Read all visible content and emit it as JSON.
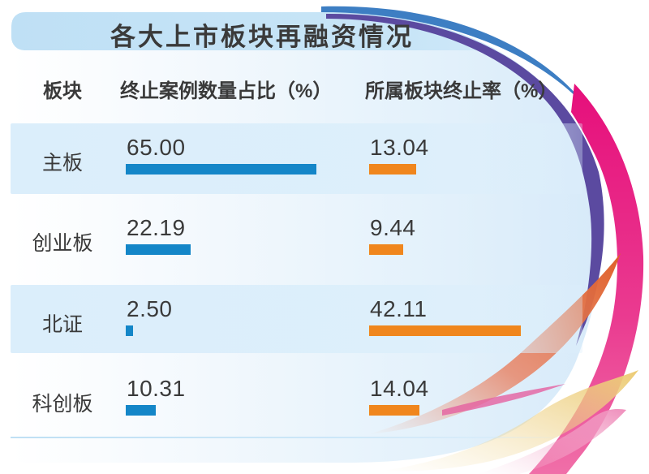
{
  "title": "各大上市板块再融资情况",
  "columns": {
    "board": "板块",
    "share": "终止案例数量占比（%）",
    "rate": "所属板块终止率（%）"
  },
  "rows": [
    {
      "board": "主板",
      "share": "65.00",
      "rate": "13.04"
    },
    {
      "board": "创业板",
      "share": "22.19",
      "rate": "9.44"
    },
    {
      "board": "北证",
      "share": "2.50",
      "rate": "42.11"
    },
    {
      "board": "科创板",
      "share": "10.31",
      "rate": "14.04"
    }
  ],
  "chart_data": {
    "type": "bar",
    "orientation": "horizontal",
    "title": "各大上市板块再融资情况",
    "categories": [
      "主板",
      "创业板",
      "北证",
      "科创板"
    ],
    "series": [
      {
        "name": "终止案例数量占比（%）",
        "values": [
          65.0,
          22.19,
          2.5,
          10.31
        ],
        "color": "#1486c8"
      },
      {
        "name": "所属板块终止率（%）",
        "values": [
          13.04,
          9.44,
          42.11,
          14.04
        ],
        "color": "#f0861d"
      }
    ],
    "value_label_format": "2-decimals",
    "legend_position": "none",
    "grid": false,
    "xlim": [
      0,
      70
    ]
  },
  "colors": {
    "title_bar": "#bfe0f5",
    "row_band": "#dbeefb",
    "bar_share": "#1486c8",
    "bar_rate": "#f0861d",
    "swoosh_blue": "#3d7ec3",
    "swoosh_purple": "#5b4aa0",
    "swoosh_magenta": "#e60f7b",
    "swoosh_orange": "#df5f28",
    "swoosh_yellow": "#eccb74",
    "swoosh_pink": "#ef8fbc",
    "text": "#3a3a3a"
  }
}
